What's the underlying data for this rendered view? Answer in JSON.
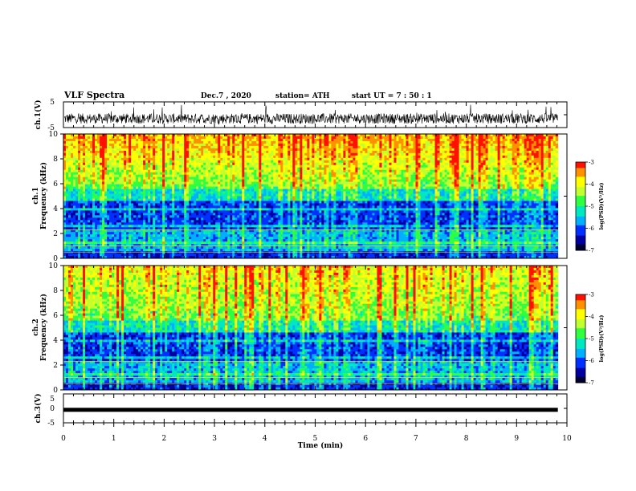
{
  "header": {
    "title": "VLF Spectra",
    "date": "Dec.7 , 2020",
    "station": "station= ATH",
    "start": "start UT = 7 : 50 : 1"
  },
  "colors": {
    "spectrogram_colormap": [
      "#000030",
      "#0000a0",
      "#0030ff",
      "#00b0ff",
      "#00e8c0",
      "#30ff40",
      "#c0ff30",
      "#ffff00",
      "#ff9000",
      "#ff1000"
    ]
  },
  "chart_data": [
    {
      "type": "line",
      "title": "VLF Spectra",
      "ylabel": "ch.1(V)",
      "ylim": [
        -5,
        5
      ],
      "yticks": [
        "5",
        "-5"
      ],
      "xlim": [
        0,
        10
      ],
      "description_values": {
        "baseline": -1.5,
        "noise_band": [
          -3.5,
          0.5
        ],
        "spike_max": 3.5
      }
    },
    {
      "type": "heatmap",
      "ylabel_line1": "ch.1",
      "ylabel_line2": "Frequency (kHz)",
      "ylim": [
        0,
        10
      ],
      "yticks": [
        "0",
        "2",
        "4",
        "6",
        "8",
        "10"
      ],
      "xlim": [
        0,
        10
      ],
      "data_end_min": 9.82,
      "colorbar": {
        "label": "log(PSD)(V²/Hz)",
        "range": [
          -7,
          -3
        ],
        "ticks": [
          "-3",
          "-4",
          "-5",
          "-6",
          "-7"
        ]
      }
    },
    {
      "type": "heatmap",
      "ylabel_line1": "ch.2",
      "ylabel_line2": "Frequency (kHz)",
      "ylim": [
        0,
        10
      ],
      "yticks": [
        "0",
        "2",
        "4",
        "6",
        "8",
        "10"
      ],
      "xlim": [
        0,
        10
      ],
      "data_end_min": 9.82,
      "colorbar": {
        "label": "log(PSD)(V²/Hz)",
        "range": [
          -7,
          -3
        ],
        "ticks": [
          "-3",
          "-4",
          "-5",
          "-6",
          "-7"
        ]
      }
    },
    {
      "type": "line",
      "ylabel": "ch.3(V)",
      "ylim": [
        -5,
        5
      ],
      "yticks": [
        "5",
        "0",
        "-5"
      ],
      "xlim": [
        0,
        10
      ],
      "xlabel": "Time (min)",
      "xticks": [
        "0",
        "1",
        "2",
        "3",
        "4",
        "5",
        "6",
        "7",
        "8",
        "9",
        "10"
      ],
      "description_values": {
        "level": -0.5
      }
    }
  ]
}
